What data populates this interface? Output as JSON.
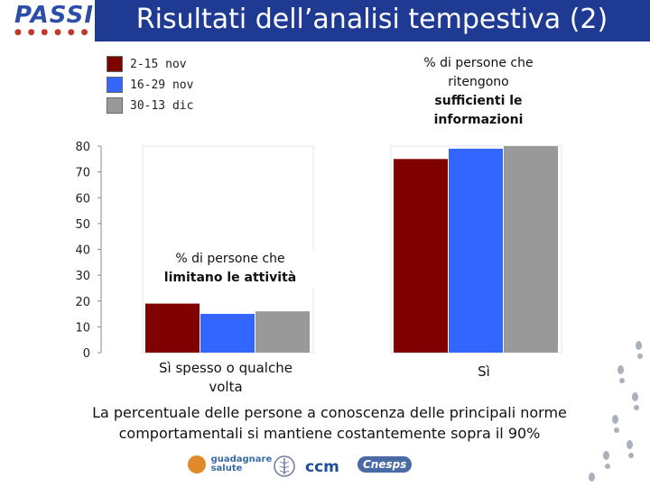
{
  "header": {
    "logo": "PASSI",
    "title": "Risultati dell’analisi tempestiva (2)"
  },
  "legend": [
    {
      "label": "2-15 nov",
      "color": "#800000"
    },
    {
      "label": "16-29 nov",
      "color": "#3366ff"
    },
    {
      "label": "30-13 dic",
      "color": "#999999"
    }
  ],
  "annotations": {
    "right_line1": "% di persone che",
    "right_line2": "ritengono",
    "right_line3": "sufficienti le",
    "right_line4": "informazioni",
    "left_line1": "% di persone che",
    "left_line2": "limitano le attività"
  },
  "chart_data": {
    "type": "bar",
    "categories": [
      "Sì spesso o qualche volta",
      "Sì"
    ],
    "series": [
      {
        "name": "2-15 nov",
        "values": [
          19,
          75
        ]
      },
      {
        "name": "16-29 nov",
        "values": [
          15,
          79
        ]
      },
      {
        "name": "30-13 dic",
        "values": [
          16,
          80
        ]
      }
    ],
    "ylim": [
      0,
      80
    ],
    "yticks": [
      0,
      10,
      20,
      30,
      40,
      50,
      60,
      70,
      80
    ],
    "colors": [
      "#800000",
      "#3366ff",
      "#999999"
    ]
  },
  "category_labels": {
    "left_line1": "Sì spesso o qualche",
    "left_line2": "volta",
    "right": "Sì"
  },
  "caption": {
    "line1": "La percentuale delle persone a conoscenza delle principali norme",
    "line2": "comportamentali si mantiene costantemente sopra il 90%"
  },
  "footer": {
    "logo1_line1": "guadagnare",
    "logo1_line2": "salute",
    "logo3": "ccm",
    "logo4": "Cnesps"
  }
}
